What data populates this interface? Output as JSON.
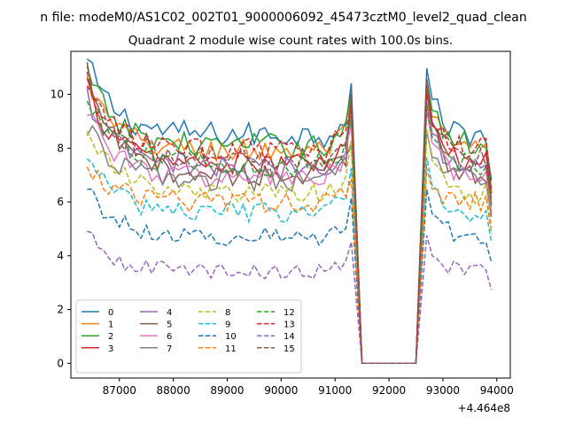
{
  "figure": {
    "suptitle": "n file: modeM0/AS1C02_002T01_9000006092_45473cztM0_level2_quad_clean"
  },
  "chart_data": {
    "type": "line",
    "title": "Quadrant 2 module wise count rates with 100.0s bins.",
    "xlabel": "",
    "ylabel": "",
    "x_offset_text": "+4.464e8",
    "x_ticks": [
      87000,
      88000,
      89000,
      90000,
      91000,
      92000,
      93000,
      94000
    ],
    "y_ticks": [
      0,
      2,
      4,
      6,
      8,
      10
    ],
    "xlim": [
      86100,
      94250
    ],
    "ylim": [
      -0.55,
      11.6
    ],
    "grid": false,
    "legend": {
      "placement": "lower-left",
      "columns": 4
    },
    "colors": [
      "#1f77b4",
      "#ff7f0e",
      "#2ca02c",
      "#d62728",
      "#9467bd",
      "#8c564b",
      "#e377c2",
      "#7f7f7f",
      "#bcbd22",
      "#17becf"
    ],
    "series": [
      {
        "name": "0",
        "dashed": false,
        "start": 11.2,
        "level": 8.5
      },
      {
        "name": "1",
        "dashed": false,
        "start": 10.5,
        "level": 7.9
      },
      {
        "name": "2",
        "dashed": false,
        "start": 10.8,
        "level": 8.1
      },
      {
        "name": "3",
        "dashed": false,
        "start": 10.3,
        "level": 7.4
      },
      {
        "name": "4",
        "dashed": false,
        "start": 9.9,
        "level": 7.3
      },
      {
        "name": "5",
        "dashed": false,
        "start": 10.8,
        "level": 7.0
      },
      {
        "name": "6",
        "dashed": false,
        "start": 9.6,
        "level": 6.9
      },
      {
        "name": "7",
        "dashed": false,
        "start": 8.8,
        "level": 6.8
      },
      {
        "name": "8",
        "dashed": true,
        "start": 8.9,
        "level": 6.3
      },
      {
        "name": "9",
        "dashed": true,
        "start": 7.8,
        "level": 5.6
      },
      {
        "name": "10",
        "dashed": true,
        "start": 6.6,
        "level": 4.7
      },
      {
        "name": "11",
        "dashed": true,
        "start": 7.4,
        "level": 6.0
      },
      {
        "name": "12",
        "dashed": true,
        "start": 9.8,
        "level": 7.4
      },
      {
        "name": "13",
        "dashed": true,
        "start": 10.3,
        "level": 7.9
      },
      {
        "name": "14",
        "dashed": true,
        "start": 4.85,
        "level": 3.4
      },
      {
        "name": "15",
        "dashed": true,
        "start": 10.7,
        "level": 7.6
      }
    ],
    "segments": {
      "first": {
        "x_start": 86400,
        "x_end": 91300,
        "step": 100
      },
      "gap": {
        "x_start": 91500,
        "x_end": 92500,
        "value": 0
      },
      "second": {
        "x_start": 92700,
        "x_end": 93900,
        "step": 100
      }
    }
  }
}
